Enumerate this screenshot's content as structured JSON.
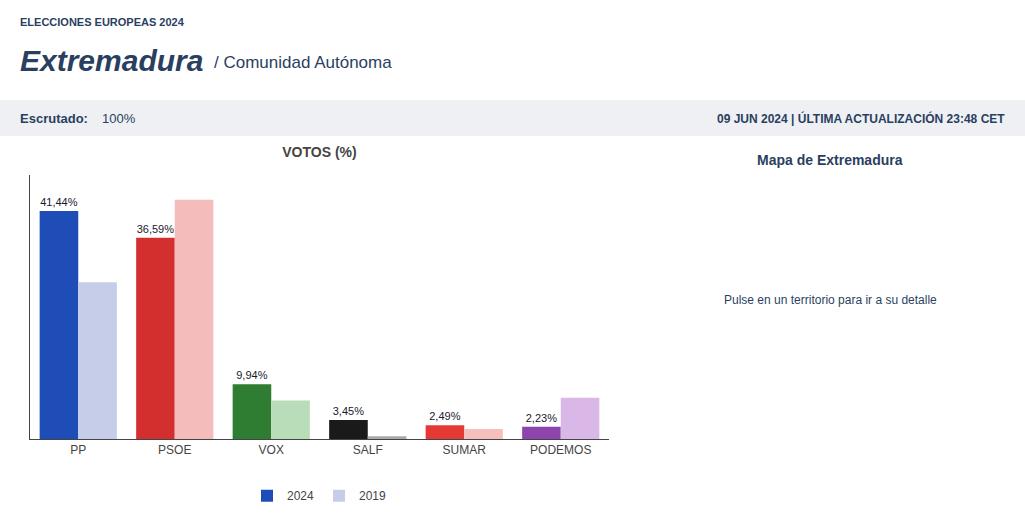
{
  "chart_data": {
    "type": "bar",
    "title": "VOTOS (%)",
    "annotations": [
      "ELECCIONES EUROPEAS 2024",
      "Extremadura",
      "/ Comunidad Autónoma",
      "Escrutado:",
      "100%",
      "09 JUN 2024 | ÚLTIMA ACTUALIZACIÓN 23:48 CET",
      "Mapa de Extremadura",
      "Pulse en un territorio para ir a su detalle"
    ],
    "categories": [
      "PP",
      "PSOE",
      "VOX",
      "SALF",
      "SUMAR",
      "PODEMOS"
    ],
    "series": [
      {
        "name": "2024",
        "values": [
          41.44,
          36.59,
          9.94,
          3.45,
          2.49,
          2.23
        ],
        "value_labels": [
          "41,44%",
          "36,59%",
          "9,94%",
          "3,45%",
          "2,49%",
          "2,23%"
        ],
        "data_labels": true,
        "colors": [
          "#1e4db7",
          "#d32f2f",
          "#2e7d32",
          "#1a1a1a",
          "#e53935",
          "#8e44ad"
        ]
      },
      {
        "name": "2019",
        "values": [
          28.5,
          43.5,
          7.0,
          0.5,
          1.8,
          7.5
        ],
        "colors": [
          "#c5cde8",
          "#f5bcbc",
          "#b8ddb8",
          "#aaaaaa",
          "#f5c0bc",
          "#d9b8e8"
        ]
      }
    ],
    "ylim": [
      0,
      48
    ],
    "grid": false,
    "tick_labels": "x",
    "legend": "bottom"
  }
}
